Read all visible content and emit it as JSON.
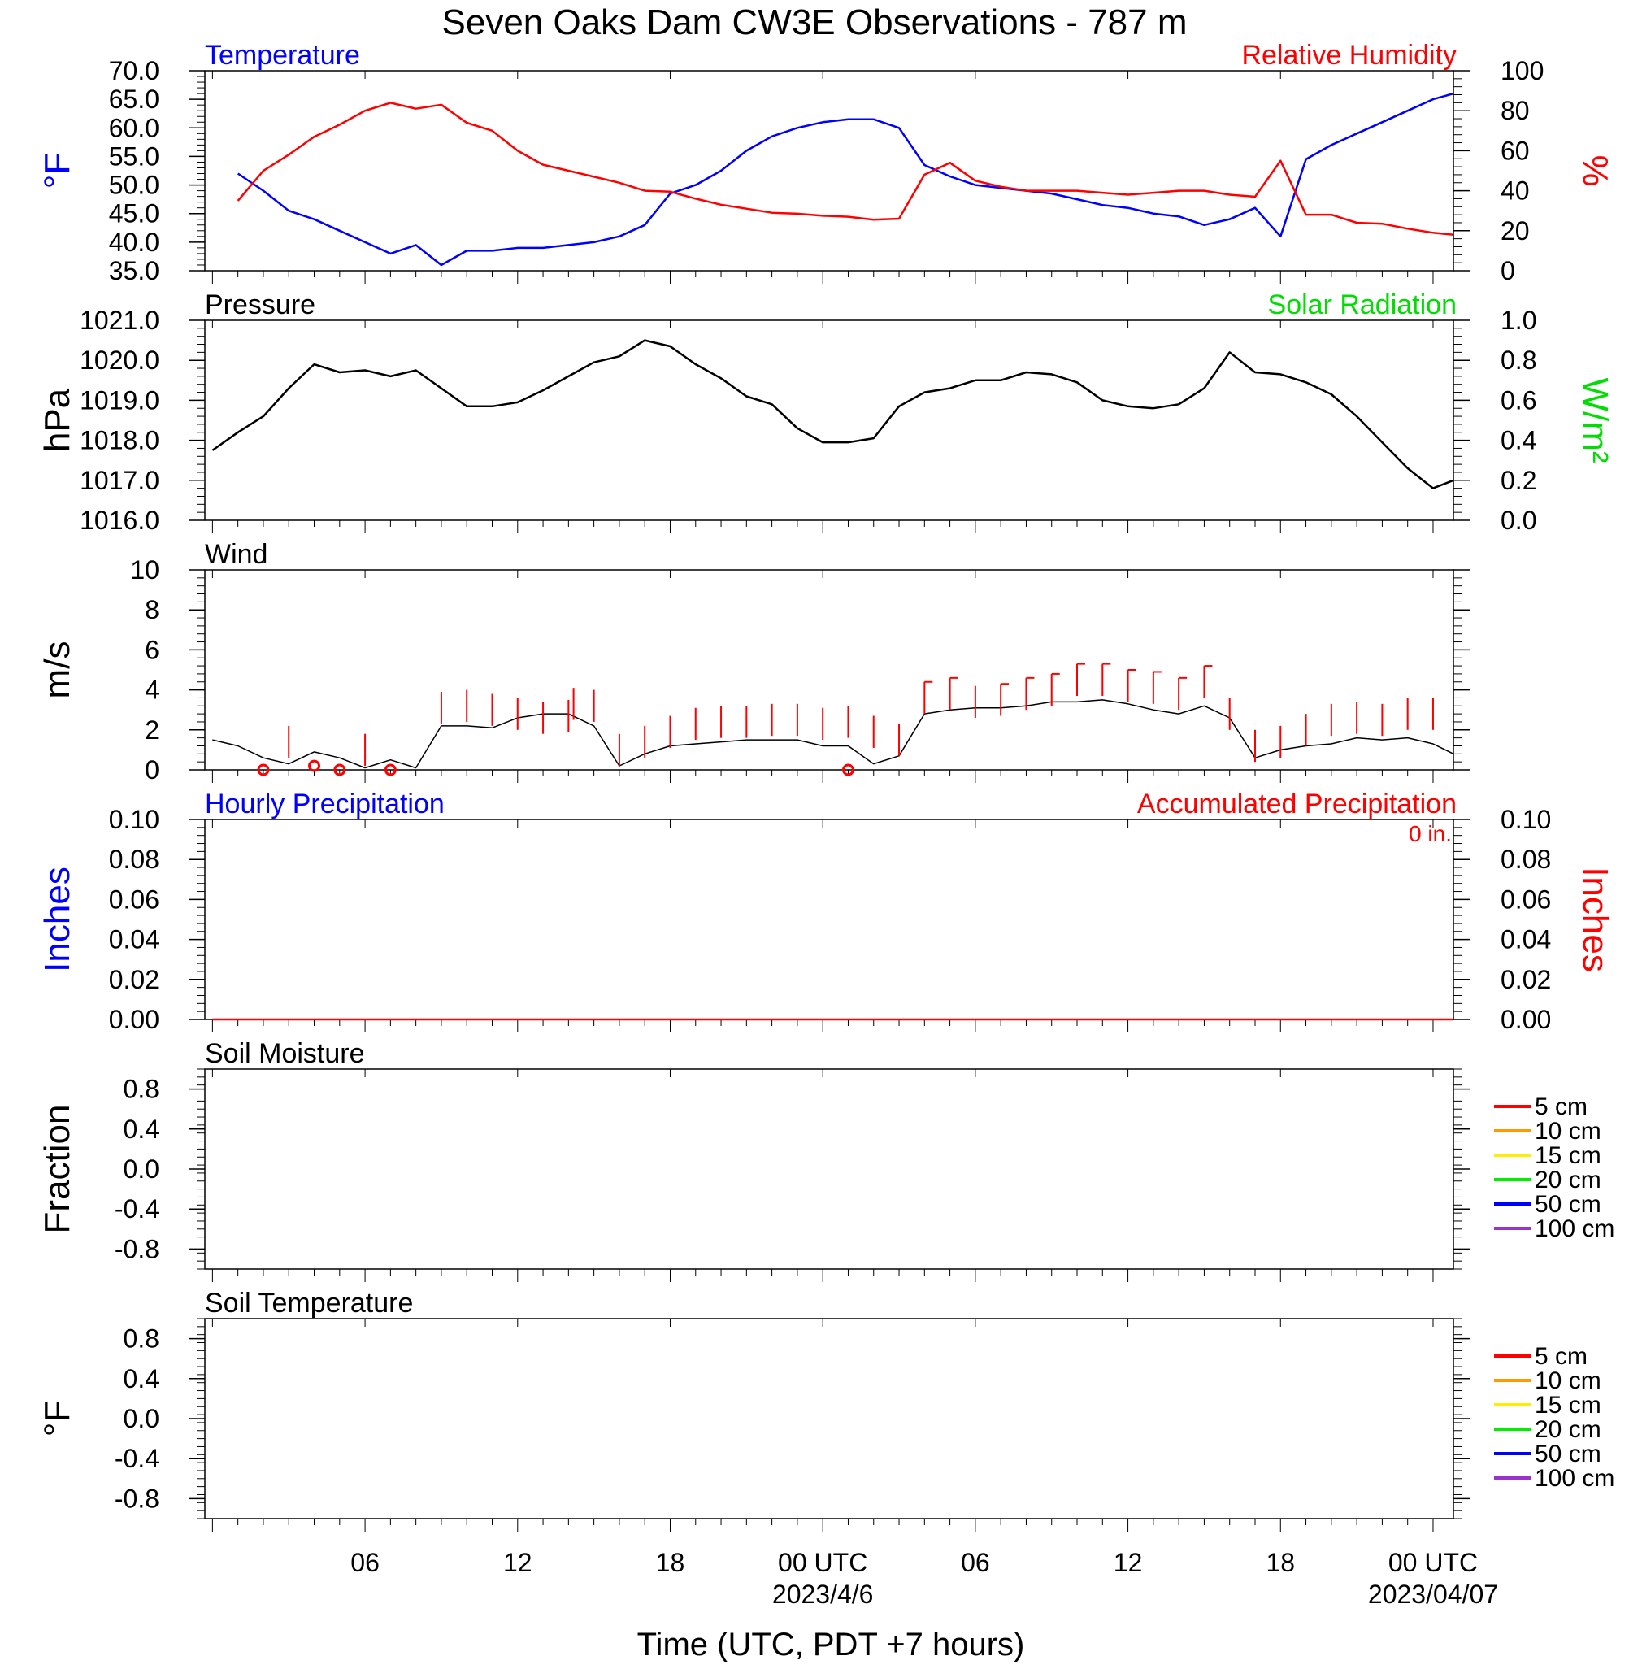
{
  "title": "Seven Oaks Dam CW3E Observations - 787 m",
  "xaxis": {
    "label": "Time (UTC, PDT +7 hours)",
    "tick_labels": [
      "06",
      "12",
      "18",
      "00 UTC",
      "06",
      "12",
      "18",
      "00 UTC"
    ],
    "date_labels": [
      "2023/4/6",
      "2023/04/07"
    ]
  },
  "colors": {
    "red": "#ff0000",
    "blue": "#0000ff",
    "green": "#00dd00",
    "black": "#000000"
  },
  "soil_legend": [
    {
      "label": "5 cm",
      "color": "#ff0000"
    },
    {
      "label": "10 cm",
      "color": "#ff9900"
    },
    {
      "label": "15 cm",
      "color": "#ffee00"
    },
    {
      "label": "20 cm",
      "color": "#00ee00"
    },
    {
      "label": "50 cm",
      "color": "#0000ff"
    },
    {
      "label": "100 cm",
      "color": "#9933cc"
    }
  ],
  "chart_data": [
    {
      "type": "line",
      "id": "temp_rh",
      "title_left": "Temperature",
      "title_right": "Relative Humidity",
      "ylabel_left": "°F",
      "ylabel_right": "%",
      "ylim_left": [
        35,
        70
      ],
      "ylim_right": [
        0,
        100
      ],
      "yticks_left": [
        "35.0",
        "40.0",
        "45.0",
        "50.0",
        "55.0",
        "60.0",
        "65.0",
        "70.0"
      ],
      "yticks_right": [
        "0",
        "20",
        "40",
        "60",
        "80",
        "100"
      ],
      "x_unit": "hours since 2023-04-05 00 UTC",
      "series": [
        {
          "name": "Temperature",
          "axis": "left",
          "color": "#0000ff",
          "x": [
            1,
            2,
            3,
            4,
            5,
            6,
            7,
            8,
            9,
            10,
            11,
            12,
            13,
            14,
            15,
            16,
            17,
            18,
            19,
            20,
            21,
            22,
            23,
            24,
            25,
            26,
            27,
            28,
            29,
            30,
            31,
            32,
            33,
            34,
            35,
            36,
            37,
            38,
            39,
            40,
            41,
            42,
            43,
            44,
            45,
            46,
            47,
            48,
            48.8
          ],
          "y": [
            52,
            49,
            45.5,
            44,
            42,
            40,
            38,
            39.5,
            36,
            38.5,
            38.5,
            39,
            39,
            39.5,
            40,
            41,
            43,
            48.5,
            50,
            52.5,
            56,
            58.5,
            60,
            61,
            61.5,
            61.5,
            60,
            53.5,
            51.5,
            50,
            49.5,
            49,
            48.5,
            47.5,
            46.5,
            46,
            45,
            44.5,
            43,
            44,
            46,
            41,
            54.5,
            57,
            59,
            61,
            63,
            65,
            66
          ]
        },
        {
          "name": "Relative Humidity",
          "axis": "right",
          "color": "#ff0000",
          "x": [
            1,
            2,
            3,
            4,
            5,
            6,
            7,
            8,
            9,
            10,
            11,
            12,
            13,
            14,
            15,
            16,
            17,
            18,
            19,
            20,
            21,
            22,
            23,
            24,
            25,
            26,
            27,
            28,
            29,
            30,
            31,
            32,
            33,
            34,
            35,
            36,
            37,
            38,
            39,
            40,
            41,
            42,
            43,
            44,
            45,
            46,
            47,
            48,
            48.8
          ],
          "y": [
            35,
            50,
            58,
            67,
            73,
            80,
            84,
            81,
            83,
            74,
            70,
            60,
            53,
            50,
            47,
            44,
            40,
            39.5,
            36,
            33,
            31,
            29,
            28.5,
            27.5,
            27,
            25.5,
            26,
            48,
            54,
            45,
            42,
            40,
            40,
            40,
            39,
            38,
            39,
            40,
            40,
            38,
            37,
            55,
            28,
            28,
            24,
            23.5,
            21,
            19,
            18
          ]
        }
      ]
    },
    {
      "type": "line",
      "id": "pressure",
      "title_left": "Pressure",
      "title_right": "Solar Radiation",
      "ylabel_left": "hPa",
      "ylabel_right": "W/m²",
      "ylim_left": [
        1016,
        1021
      ],
      "ylim_right": [
        0,
        1
      ],
      "yticks_left": [
        "1016.0",
        "1017.0",
        "1018.0",
        "1019.0",
        "1020.0",
        "1021.0"
      ],
      "yticks_right": [
        "0.0",
        "0.2",
        "0.4",
        "0.6",
        "0.8",
        "1.0"
      ],
      "series": [
        {
          "name": "Pressure",
          "axis": "left",
          "color": "#000000",
          "x": [
            0,
            1,
            2,
            3,
            4,
            5,
            6,
            7,
            8,
            9,
            10,
            11,
            12,
            13,
            14,
            15,
            16,
            17,
            18,
            19,
            20,
            21,
            22,
            23,
            24,
            25,
            26,
            27,
            28,
            29,
            30,
            31,
            32,
            33,
            34,
            35,
            36,
            37,
            38,
            39,
            40,
            41,
            42,
            43,
            44,
            45,
            46,
            47,
            48,
            48.8
          ],
          "y": [
            1017.75,
            1018.2,
            1018.6,
            1019.3,
            1019.9,
            1019.7,
            1019.75,
            1019.6,
            1019.75,
            1019.3,
            1018.85,
            1018.85,
            1018.95,
            1019.25,
            1019.6,
            1019.95,
            1020.1,
            1020.5,
            1020.35,
            1019.9,
            1019.55,
            1019.1,
            1018.9,
            1018.3,
            1017.95,
            1017.95,
            1018.05,
            1018.85,
            1019.2,
            1019.3,
            1019.5,
            1019.5,
            1019.7,
            1019.65,
            1019.45,
            1019.0,
            1018.85,
            1018.8,
            1018.9,
            1019.3,
            1020.2,
            1019.7,
            1019.65,
            1019.45,
            1019.15,
            1018.6,
            1017.95,
            1017.3,
            1016.8,
            1017.0
          ]
        }
      ]
    },
    {
      "type": "line",
      "id": "wind",
      "title_left": "Wind",
      "ylabel_left": "m/s",
      "ylim_left": [
        0,
        10
      ],
      "yticks_left": [
        "0",
        "2",
        "4",
        "6",
        "8",
        "10"
      ],
      "series": [
        {
          "name": "Wind",
          "axis": "left",
          "color": "#000000",
          "x": [
            0,
            1,
            2,
            3,
            4,
            5,
            6,
            7,
            8,
            9,
            10,
            11,
            12,
            13,
            14,
            15,
            16,
            17,
            18,
            19,
            20,
            21,
            22,
            23,
            24,
            25,
            26,
            27,
            28,
            29,
            30,
            31,
            32,
            33,
            34,
            35,
            36,
            37,
            38,
            39,
            40,
            41,
            42,
            43,
            44,
            45,
            46,
            47,
            48,
            48.8
          ],
          "y": [
            1.5,
            1.2,
            0.6,
            0.3,
            0.9,
            0.6,
            0.1,
            0.5,
            0.1,
            2.2,
            2.2,
            2.1,
            2.6,
            2.8,
            2.8,
            2.2,
            0.2,
            0.8,
            1.2,
            1.3,
            1.4,
            1.5,
            1.5,
            1.5,
            1.2,
            1.2,
            0.3,
            0.7,
            2.8,
            3.0,
            3.1,
            3.1,
            3.2,
            3.4,
            3.4,
            3.5,
            3.3,
            3.0,
            2.8,
            3.2,
            2.6,
            0.6,
            1.0,
            1.2,
            1.3,
            1.6,
            1.5,
            1.6,
            1.3,
            0.8
          ]
        },
        {
          "name": "Wind barbs",
          "axis": "left",
          "color": "#ff0000",
          "x": [
            3,
            6,
            9,
            10,
            11,
            12,
            13,
            14,
            14.2,
            15,
            16,
            17,
            18,
            19,
            20,
            21,
            22,
            23,
            24,
            25,
            26,
            27,
            28,
            29,
            30,
            31,
            32,
            33,
            34,
            35,
            36,
            37,
            38,
            39,
            40,
            41,
            42,
            43,
            44,
            45,
            46,
            47,
            48
          ],
          "y": [
            2.2,
            1.8,
            3.9,
            4.0,
            3.8,
            3.6,
            3.4,
            3.5,
            4.1,
            4.0,
            1.8,
            2.2,
            2.7,
            3.1,
            3.2,
            3.2,
            3.3,
            3.3,
            3.1,
            3.2,
            2.7,
            2.3,
            4.4,
            4.6,
            4.2,
            4.3,
            4.6,
            4.8,
            5.3,
            5.3,
            5.0,
            4.9,
            4.6,
            5.2,
            3.6,
            2.0,
            2.2,
            2.8,
            3.3,
            3.4,
            3.3,
            3.6,
            3.6
          ]
        },
        {
          "name": "Calm",
          "axis": "left",
          "color": "#ff0000",
          "x": [
            2,
            4,
            5,
            7,
            25
          ],
          "y": [
            0,
            0.2,
            0,
            0,
            0
          ]
        }
      ]
    },
    {
      "type": "line",
      "id": "precip",
      "title_left": "Hourly Precipitation",
      "title_right": "Accumulated Precipitation",
      "annotation": "0 in.",
      "ylabel_left": "Inches",
      "ylabel_right": "Inches",
      "ylim_left": [
        0,
        0.1
      ],
      "ylim_right": [
        0,
        0.1
      ],
      "yticks_left": [
        "0.00",
        "0.02",
        "0.04",
        "0.06",
        "0.08",
        "0.10"
      ],
      "yticks_right": [
        "0.00",
        "0.02",
        "0.04",
        "0.06",
        "0.08",
        "0.10"
      ],
      "series": [
        {
          "name": "Accumulated Precipitation",
          "axis": "right",
          "color": "#ff0000",
          "x": [
            0,
            48.8
          ],
          "y": [
            0,
            0
          ]
        }
      ]
    },
    {
      "type": "line",
      "id": "soil_moisture",
      "title_left": "Soil Moisture",
      "ylabel_left": "Fraction",
      "ylim_left": [
        -1,
        1
      ],
      "yticks_left": [
        "-0.8",
        "-0.4",
        "0.0",
        "0.4",
        "0.8"
      ],
      "series": []
    },
    {
      "type": "line",
      "id": "soil_temperature",
      "title_left": "Soil Temperature",
      "ylabel_left": "°F",
      "ylim_left": [
        -1,
        1
      ],
      "yticks_left": [
        "-0.8",
        "-0.4",
        "0.0",
        "0.4",
        "0.8"
      ],
      "series": []
    }
  ]
}
